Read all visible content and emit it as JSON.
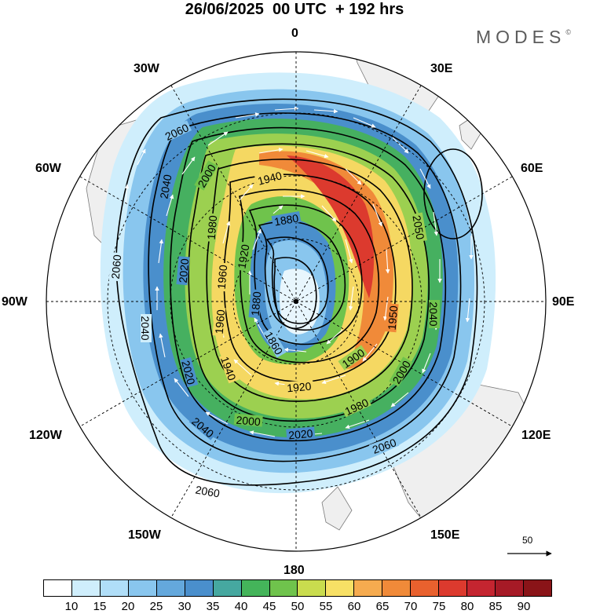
{
  "header": {
    "title": "26/06/2025  00 UTC  + 192 hrs",
    "brand": "MODES",
    "brand_mark": "©"
  },
  "map": {
    "projection": "south-polar-stereographic",
    "lon_labels": {
      "top": "0",
      "n30e": "30E",
      "n60e": "60E",
      "n90e": "90E",
      "n120e": "120E",
      "n150e": "150E",
      "bottom": "180",
      "n150w": "150W",
      "n120w": "120W",
      "n90w": "90W",
      "n60w": "60W",
      "n30w": "30W"
    },
    "contour_labels": {
      "c1": "2060",
      "c2": "2040",
      "c3": "2000",
      "c4": "1940",
      "c5": "1980",
      "c6": "2020",
      "c7": "1960",
      "c8": "1920",
      "c9": "1880",
      "c10": "1860",
      "c11": "1880",
      "c12": "2060",
      "c13": "2040",
      "c14": "2020",
      "c15": "1940",
      "c16": "1960",
      "c17": "2000",
      "c18": "2020",
      "c19": "2040",
      "c20": "2060",
      "c21": "1920",
      "c22": "1900",
      "c23": "1980",
      "c24": "2000",
      "c25": "1950",
      "c26": "2040",
      "c27": "2050"
    },
    "reference_vector": "50",
    "colors": {
      "land": "#efefef",
      "coast": "#7a7a7a",
      "vector": "#ffffff"
    }
  },
  "legend": {
    "ticks": [
      "10",
      "15",
      "20",
      "25",
      "30",
      "35",
      "40",
      "45",
      "50",
      "55",
      "60",
      "65",
      "70",
      "75",
      "80",
      "85",
      "90"
    ],
    "colors": [
      "#ffffff",
      "#cfeefc",
      "#b0def8",
      "#89c6ee",
      "#64a8dc",
      "#4a8fcc",
      "#46a8a0",
      "#44b45a",
      "#6fc34c",
      "#c9dc4e",
      "#f7e065",
      "#f6ab4f",
      "#f08a39",
      "#e9612e",
      "#dc3a2e",
      "#c42530",
      "#a61a26",
      "#8a1418"
    ]
  }
}
